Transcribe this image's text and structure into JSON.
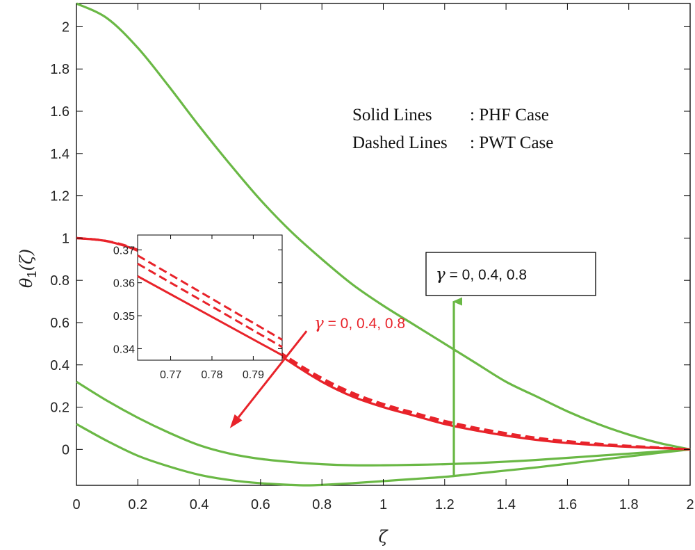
{
  "chart_data": {
    "type": "line",
    "xlabel": "ζ",
    "ylabel_main": "θ",
    "ylabel_sub": "1",
    "ylabel_arg": "(ζ)",
    "xlim": [
      0,
      2
    ],
    "ylim": [
      -0.17,
      2.11
    ],
    "xticks": [
      0,
      0.2,
      0.4,
      0.6,
      0.8,
      1,
      1.2,
      1.4,
      1.6,
      1.8,
      2
    ],
    "xtick_labels": [
      "0",
      "0.2",
      "0.4",
      "0.6",
      "0.8",
      "1",
      "1.2",
      "1.4",
      "1.6",
      "1.8",
      "2"
    ],
    "yticks": [
      0,
      0.2,
      0.4,
      0.6,
      0.8,
      1,
      1.2,
      1.4,
      1.6,
      1.8,
      2
    ],
    "ytick_labels": [
      "0",
      "0.2",
      "0.4",
      "0.6",
      "0.8",
      "1",
      "1.2",
      "1.4",
      "1.6",
      "1.8",
      "2"
    ],
    "grid": false,
    "colors": {
      "green": "#6ab845",
      "red": "#e8232a"
    },
    "series": [
      {
        "color": "green",
        "style": "solid",
        "x": [
          0,
          0.1,
          0.2,
          0.3,
          0.4,
          0.5,
          0.6,
          0.7,
          0.8,
          0.9,
          1.0,
          1.1,
          1.2,
          1.3,
          1.4,
          1.5,
          1.6,
          1.7,
          1.8,
          1.9,
          2.0
        ],
        "y": [
          2.11,
          2.04,
          1.9,
          1.72,
          1.53,
          1.35,
          1.18,
          1.03,
          0.9,
          0.78,
          0.68,
          0.59,
          0.5,
          0.41,
          0.32,
          0.25,
          0.18,
          0.12,
          0.07,
          0.03,
          0
        ]
      },
      {
        "color": "green",
        "style": "solid",
        "x": [
          0,
          0.1,
          0.2,
          0.3,
          0.4,
          0.5,
          0.6,
          0.7,
          0.8,
          0.9,
          1.0,
          1.1,
          1.2,
          1.3,
          1.4,
          1.5,
          1.6,
          1.7,
          1.8,
          1.9,
          2.0
        ],
        "y": [
          0.32,
          0.23,
          0.15,
          0.08,
          0.02,
          -0.02,
          -0.045,
          -0.06,
          -0.07,
          -0.075,
          -0.075,
          -0.073,
          -0.07,
          -0.065,
          -0.058,
          -0.05,
          -0.04,
          -0.03,
          -0.02,
          -0.01,
          0
        ]
      },
      {
        "color": "green",
        "style": "solid",
        "x": [
          0,
          0.1,
          0.2,
          0.3,
          0.4,
          0.5,
          0.6,
          0.7,
          0.75,
          0.8,
          0.9,
          1.0,
          1.1,
          1.2,
          1.3,
          1.4,
          1.5,
          1.6,
          1.7,
          1.8,
          1.9,
          2.0
        ],
        "y": [
          0.12,
          0.04,
          -0.03,
          -0.08,
          -0.12,
          -0.145,
          -0.16,
          -0.168,
          -0.17,
          -0.168,
          -0.16,
          -0.15,
          -0.14,
          -0.13,
          -0.115,
          -0.1,
          -0.085,
          -0.068,
          -0.05,
          -0.033,
          -0.016,
          0
        ]
      },
      {
        "color": "red",
        "style": "solid",
        "x": [
          0,
          0.1,
          0.2,
          0.3,
          0.4,
          0.5,
          0.6,
          0.7,
          0.8,
          0.9,
          1.0,
          1.1,
          1.2,
          1.3,
          1.4,
          1.5,
          1.6,
          1.7,
          1.8,
          1.9,
          2.0
        ],
        "y": [
          1.0,
          0.985,
          0.94,
          0.86,
          0.75,
          0.63,
          0.51,
          0.41,
          0.32,
          0.25,
          0.2,
          0.16,
          0.12,
          0.09,
          0.065,
          0.045,
          0.03,
          0.02,
          0.012,
          0.006,
          0
        ]
      },
      {
        "color": "red",
        "style": "dashed",
        "x": [
          0,
          0.1,
          0.2,
          0.3,
          0.4,
          0.5,
          0.6,
          0.7,
          0.8,
          0.9,
          1.0,
          1.1,
          1.2,
          1.3,
          1.4,
          1.5,
          1.6,
          1.7,
          1.8,
          1.9,
          2.0
        ],
        "y": [
          1.0,
          0.985,
          0.942,
          0.863,
          0.755,
          0.637,
          0.518,
          0.418,
          0.33,
          0.26,
          0.208,
          0.167,
          0.128,
          0.097,
          0.071,
          0.05,
          0.035,
          0.024,
          0.015,
          0.008,
          0
        ]
      },
      {
        "color": "red",
        "style": "dashed",
        "x": [
          0,
          0.1,
          0.2,
          0.3,
          0.4,
          0.5,
          0.6,
          0.7,
          0.8,
          0.9,
          1.0,
          1.1,
          1.2,
          1.3,
          1.4,
          1.5,
          1.6,
          1.7,
          1.8,
          1.9,
          2.0
        ],
        "y": [
          1.0,
          0.986,
          0.944,
          0.866,
          0.76,
          0.643,
          0.525,
          0.425,
          0.338,
          0.268,
          0.215,
          0.174,
          0.135,
          0.103,
          0.077,
          0.055,
          0.039,
          0.027,
          0.017,
          0.009,
          0
        ]
      }
    ],
    "inset": {
      "xlim": [
        0.762,
        0.797
      ],
      "ylim": [
        0.3365,
        0.3745
      ],
      "xticks": [
        0.77,
        0.78,
        0.79
      ],
      "xtick_labels": [
        "0.77",
        "0.78",
        "0.79"
      ],
      "yticks": [
        0.34,
        0.35,
        0.36,
        0.37
      ],
      "ytick_labels": [
        "0.34",
        "0.35",
        "0.36",
        "0.37"
      ],
      "series": [
        {
          "color": "red",
          "style": "solid",
          "x": [
            0.762,
            0.797
          ],
          "y": [
            0.362,
            0.338
          ]
        },
        {
          "color": "red",
          "style": "dashed",
          "x": [
            0.762,
            0.797
          ],
          "y": [
            0.3658,
            0.3405
          ]
        },
        {
          "color": "red",
          "style": "dashed",
          "x": [
            0.762,
            0.797
          ],
          "y": [
            0.3683,
            0.3427
          ]
        }
      ]
    },
    "legend_text": [
      {
        "left": "Solid Lines",
        "right": ": PHF Case"
      },
      {
        "left": "Dashed Lines",
        "right": ": PWT Case"
      }
    ],
    "annotations": {
      "green_gamma_symbol": "γ",
      "green_gamma_values": " = 0, 0.4, 0.8",
      "red_gamma_symbol": "γ",
      "red_gamma_values": " = 0, 0.4, 0.8",
      "green_arrow": {
        "from": [
          1.23,
          -0.13
        ],
        "to": [
          1.23,
          0.7
        ]
      },
      "red_arrow": {
        "from": [
          0.75,
          0.56
        ],
        "to": [
          0.5,
          0.1
        ]
      }
    }
  }
}
